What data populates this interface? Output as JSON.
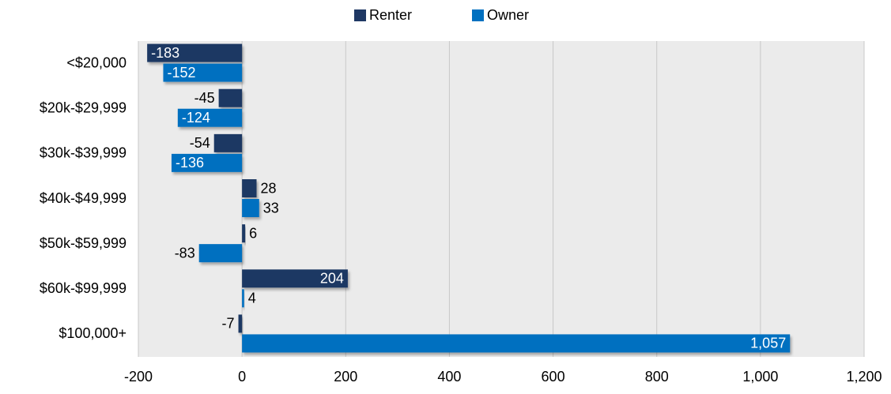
{
  "chart_data": {
    "type": "hbar",
    "categories": [
      "<$20,000",
      "$20k-$29,999",
      "$30k-$39,999",
      "$40k-$49,999",
      "$50k-$59,999",
      "$60k-$99,999",
      "$100,000+"
    ],
    "series": [
      {
        "name": "Renter",
        "color": "#1f3864",
        "values": [
          -183,
          -45,
          -54,
          28,
          6,
          204,
          -7
        ]
      },
      {
        "name": "Owner",
        "color": "#0070c0",
        "values": [
          -152,
          -124,
          -136,
          33,
          -83,
          4,
          1057
        ],
        "value_labels": [
          "-152",
          "-124",
          "-136",
          "33",
          "-83",
          "4",
          "1,057"
        ]
      }
    ],
    "xlim": [
      -200,
      1200
    ],
    "xticks": [
      {
        "value": -200,
        "label": "-200"
      },
      0,
      200,
      400,
      600,
      800,
      {
        "value": 1000,
        "label": "1,000"
      },
      {
        "value": 1200,
        "label": "1,200"
      }
    ],
    "grid": true,
    "legend": "top"
  }
}
